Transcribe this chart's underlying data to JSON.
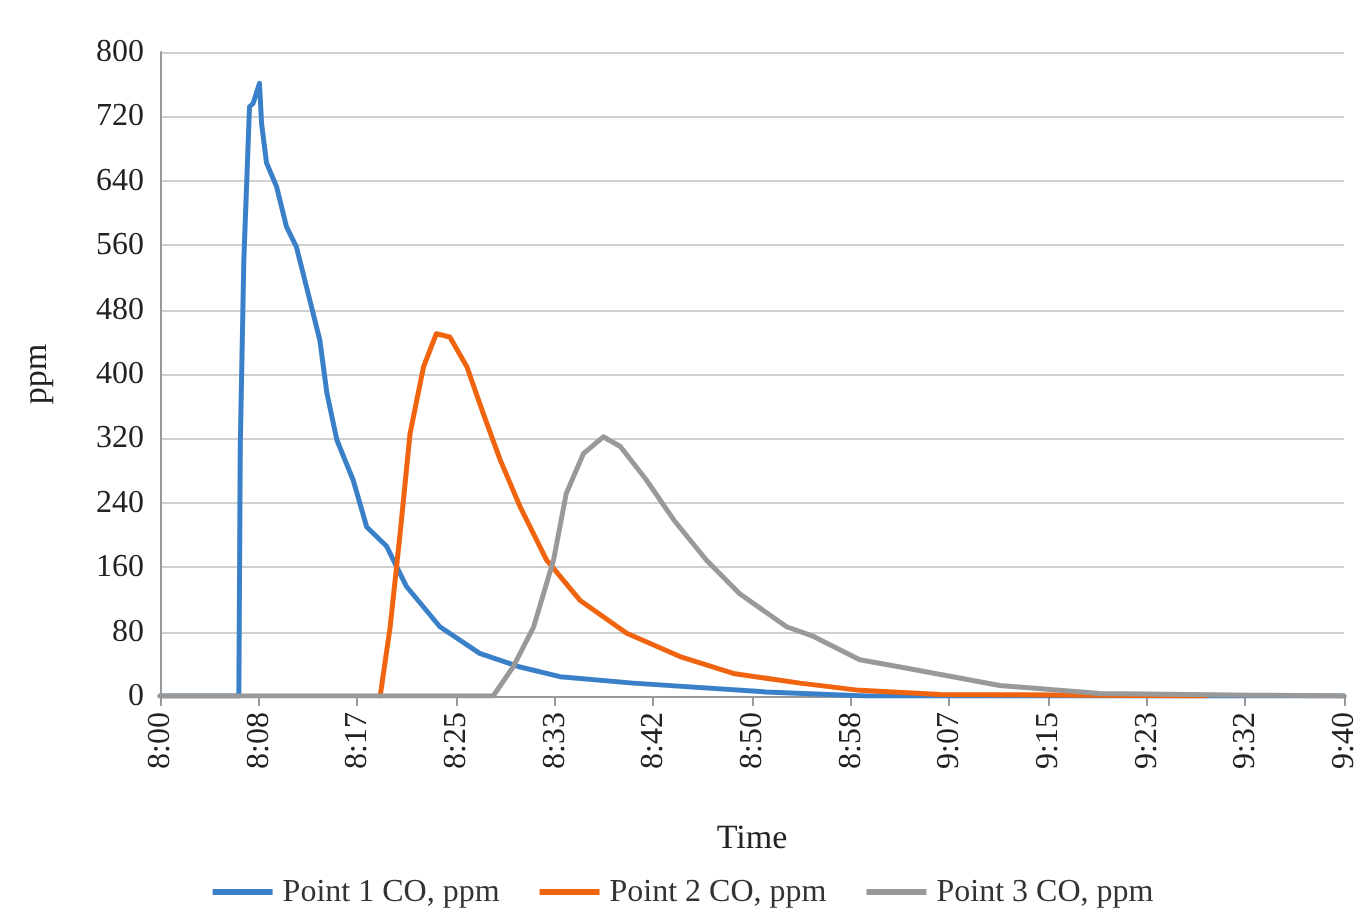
{
  "chart_data": {
    "type": "line",
    "xlabel": "Time",
    "ylabel": "ppm",
    "xlim": [
      8,
      9.6667
    ],
    "xticks": [
      {
        "value": 8,
        "label": "8:00"
      },
      {
        "value": 8.1389,
        "label": "8:08"
      },
      {
        "value": 8.2778,
        "label": "8:17"
      },
      {
        "value": 8.4167,
        "label": "8:25"
      },
      {
        "value": 8.5556,
        "label": "8:33"
      },
      {
        "value": 8.6944,
        "label": "8:42"
      },
      {
        "value": 8.8333,
        "label": "8:50"
      },
      {
        "value": 8.9722,
        "label": "8:58"
      },
      {
        "value": 9.1111,
        "label": "9:07"
      },
      {
        "value": 9.25,
        "label": "9:15"
      },
      {
        "value": 9.3889,
        "label": "9:23"
      },
      {
        "value": 9.5278,
        "label": "9:32"
      },
      {
        "value": 9.6667,
        "label": "9:40"
      }
    ],
    "ylim": [
      0,
      800
    ],
    "yticks": [
      0,
      80,
      160,
      240,
      320,
      400,
      480,
      560,
      640,
      720,
      800
    ],
    "grid": "y",
    "legend": "bottom",
    "marker": "none",
    "line_style": "solid",
    "series": [
      {
        "name": "Point 1 CO, ppm",
        "color": "#3a80c8",
        "x": [
          8,
          8.111,
          8.113,
          8.118,
          8.126,
          8.131,
          8.14,
          8.143,
          8.15,
          8.164,
          8.178,
          8.192,
          8.206,
          8.225,
          8.235,
          8.249,
          8.272,
          8.291,
          8.319,
          8.347,
          8.394,
          8.45,
          8.507,
          8.563,
          8.666,
          8.853,
          8.994,
          9.6667
        ],
        "values": [
          0,
          0,
          310,
          541,
          732,
          736,
          761,
          711,
          662,
          633,
          583,
          558,
          509,
          442,
          376,
          318,
          268,
          210,
          186,
          136,
          86,
          53,
          36,
          24,
          16,
          5,
          0,
          0
        ]
      },
      {
        "name": "Point 2 CO, ppm",
        "color": "#f06410",
        "x": [
          8.31,
          8.324,
          8.338,
          8.352,
          8.371,
          8.389,
          8.408,
          8.432,
          8.455,
          8.479,
          8.507,
          8.544,
          8.591,
          8.657,
          8.732,
          8.807,
          8.901,
          8.985,
          9.098,
          9.472
        ],
        "values": [
          0,
          86,
          202,
          326,
          409,
          450,
          446,
          409,
          351,
          293,
          235,
          169,
          119,
          78,
          49,
          28,
          16,
          7,
          2,
          0
        ]
      },
      {
        "name": "Point 3 CO, ppm",
        "color": "#999999",
        "x": [
          8,
          8.469,
          8.497,
          8.526,
          8.554,
          8.572,
          8.596,
          8.624,
          8.648,
          8.685,
          8.723,
          8.769,
          8.816,
          8.882,
          8.92,
          8.985,
          9.042,
          9.182,
          9.323,
          9.539,
          9.6667
        ],
        "values": [
          0,
          0,
          36,
          86,
          169,
          252,
          301,
          322,
          310,
          268,
          219,
          169,
          127,
          86,
          74,
          45,
          36,
          13,
          3,
          1,
          0
        ]
      }
    ]
  }
}
